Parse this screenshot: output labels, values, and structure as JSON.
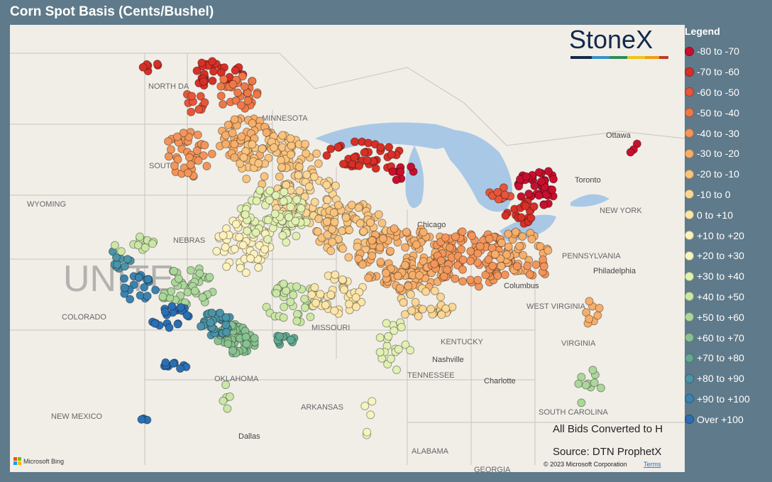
{
  "title": "Corn Spot Basis (Cents/Bushel)",
  "logo": "StoneX",
  "legend": {
    "title": "Legend",
    "items": [
      {
        "label": "-80 to -70",
        "color": "#c8102e"
      },
      {
        "label": "-70 to -60",
        "color": "#d73027"
      },
      {
        "label": "-60 to -50",
        "color": "#e8553a"
      },
      {
        "label": "-50 to -40",
        "color": "#ef7848"
      },
      {
        "label": "-40 to -30",
        "color": "#f3955a"
      },
      {
        "label": "-30 to -20",
        "color": "#f7ae6a"
      },
      {
        "label": "-20 to -10",
        "color": "#fac47e"
      },
      {
        "label": "-10 to 0",
        "color": "#fbd694"
      },
      {
        "label": "0 to +10",
        "color": "#fce5a8"
      },
      {
        "label": "+10 to +20",
        "color": "#fdf1bd"
      },
      {
        "label": "+20 to +30",
        "color": "#f5f5be"
      },
      {
        "label": "+30 to +40",
        "color": "#e2f1b2"
      },
      {
        "label": "+40 to +50",
        "color": "#cbe7a6"
      },
      {
        "label": "+50 to +60",
        "color": "#acd79b"
      },
      {
        "label": "+60 to +70",
        "color": "#88c290"
      },
      {
        "label": "+70 to +80",
        "color": "#62aa92"
      },
      {
        "label": "+80 to +90",
        "color": "#4c94a8"
      },
      {
        "label": "+90 to +100",
        "color": "#3b83af"
      },
      {
        "label": "Over +100",
        "color": "#2b6fb3"
      }
    ]
  },
  "map_labels": [
    "UNITE",
    "NORTH DA",
    "MINNESOTA",
    "SOUTH",
    "WYOMING",
    "NEBRAS",
    "COLORADO",
    "MISSOURI",
    "KENTUCKY",
    "TENNESSEE",
    "Nashville",
    "OKLAHOMA",
    "ARKANSAS",
    "NEW MEXICO",
    "Dallas",
    "Charlotte",
    "WEST VIRGINIA",
    "Columbus",
    "PENNSYLVANIA",
    "Philadelphia",
    "NEW YORK",
    "Toronto",
    "Ottawa",
    "Chicago",
    "VIRGINIA",
    "ALABAMA",
    "GEORGIA",
    "SOUTH CAROLINA"
  ],
  "notes": [
    "All Bids Converted to H",
    "Source: DTN ProphetX"
  ],
  "copyright": "© 2023 Microsoft Corporation",
  "terms": "Terms",
  "bing": "Microsoft Bing"
}
